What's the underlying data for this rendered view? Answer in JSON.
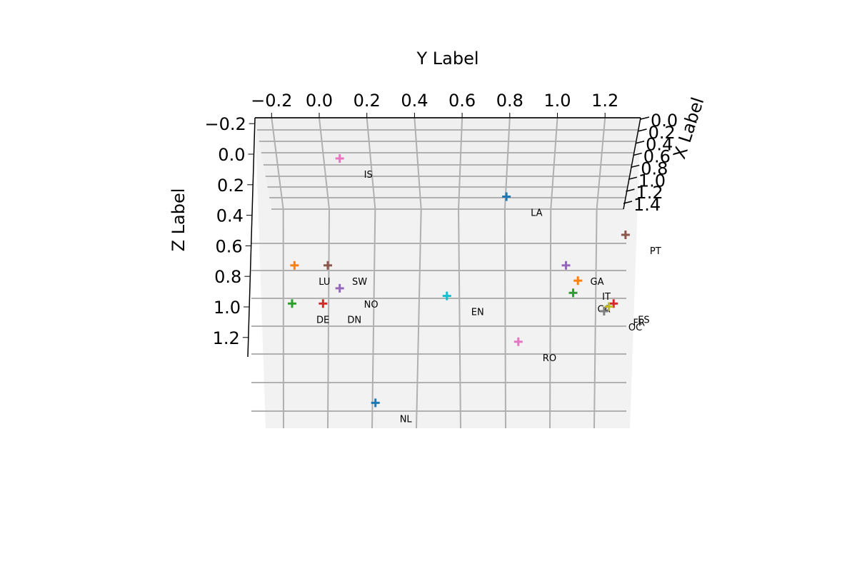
{
  "chart_data": {
    "type": "scatter",
    "projection": "3d",
    "marker": "plus",
    "title": "",
    "xlabel": "X Label",
    "ylabel": "Y Label",
    "zlabel": "Z Label",
    "y_ticks": [
      "−0.2",
      "0.0",
      "0.2",
      "0.4",
      "0.6",
      "0.8",
      "1.0",
      "1.2"
    ],
    "z_ticks": [
      "−0.2",
      "0.0",
      "0.2",
      "0.4",
      "0.6",
      "0.8",
      "1.0",
      "1.2"
    ],
    "x_ticks": [
      "0.0",
      "0.2",
      "0.4",
      "0.6",
      "0.8",
      "1.0",
      "1.2",
      "1.4"
    ],
    "ylim": [
      -0.25,
      1.35
    ],
    "zlim": [
      -0.2,
      1.3
    ],
    "grid": true,
    "points": [
      {
        "label": "IS",
        "y": 0.05,
        "z": 0.0,
        "color": "#e377c2"
      },
      {
        "label": "LA",
        "y": 0.75,
        "z": 0.25,
        "color": "#1f77b4"
      },
      {
        "label": "PT",
        "y": 1.25,
        "z": 0.5,
        "color": "#8c564b"
      },
      {
        "label": "GA",
        "y": 1.0,
        "z": 0.7,
        "color": "#9467bd"
      },
      {
        "label": "IT",
        "y": 1.05,
        "z": 0.8,
        "color": "#ff7f0e"
      },
      {
        "label": "CA",
        "y": 1.03,
        "z": 0.88,
        "color": "#2ca02c"
      },
      {
        "label": "ES",
        "y": 1.2,
        "z": 0.95,
        "color": "#d62728"
      },
      {
        "label": "FR",
        "y": 1.18,
        "z": 0.97,
        "color": "#bcbd22"
      },
      {
        "label": "OC",
        "y": 1.16,
        "z": 1.0,
        "color": "#7f7f7f"
      },
      {
        "label": "LU",
        "y": -0.14,
        "z": 0.7,
        "color": "#ff7f0e"
      },
      {
        "label": "SW",
        "y": 0.0,
        "z": 0.7,
        "color": "#8c564b"
      },
      {
        "label": "NO",
        "y": 0.05,
        "z": 0.85,
        "color": "#9467bd"
      },
      {
        "label": "DE",
        "y": -0.15,
        "z": 0.95,
        "color": "#2ca02c"
      },
      {
        "label": "DN",
        "y": -0.02,
        "z": 0.95,
        "color": "#d62728"
      },
      {
        "label": "EN",
        "y": 0.5,
        "z": 0.9,
        "color": "#17becf"
      },
      {
        "label": "RO",
        "y": 0.8,
        "z": 1.2,
        "color": "#e377c2"
      },
      {
        "label": "NL",
        "y": 0.2,
        "z": 1.6,
        "color": "#1f77b4"
      }
    ]
  }
}
